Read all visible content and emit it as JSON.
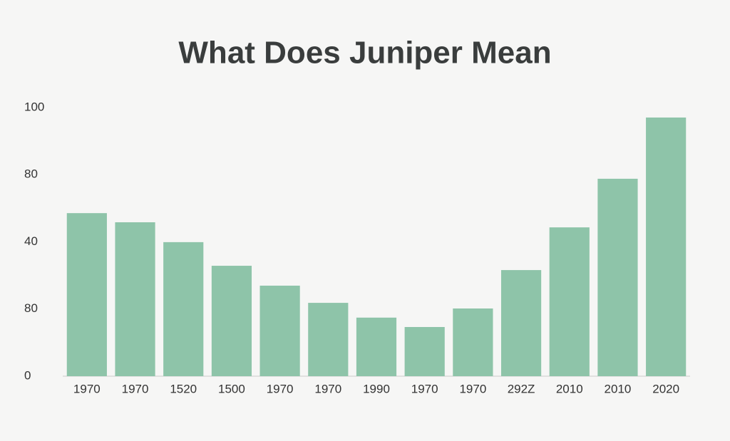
{
  "chart_data": {
    "type": "bar",
    "title": "What Does Juniper Mean",
    "categories": [
      "1970",
      "1970",
      "1520",
      "1500",
      "1970",
      "1970",
      "1990",
      "1970",
      "1970",
      "292Z",
      "2010",
      "2010",
      "2020"
    ],
    "values": [
      60.7,
      57.3,
      49.9,
      41.1,
      33.7,
      27.3,
      21.8,
      18.3,
      25.2,
      39.5,
      55.4,
      73.5,
      96.3
    ],
    "color": "#8ec4a9",
    "ylim": [
      0,
      100
    ],
    "yticks": [
      0,
      {
        "value": 25,
        "label": "80"
      },
      {
        "value": 50,
        "label": "40"
      },
      {
        "value": 75,
        "label": "80"
      },
      100
    ],
    "grid": false
  }
}
